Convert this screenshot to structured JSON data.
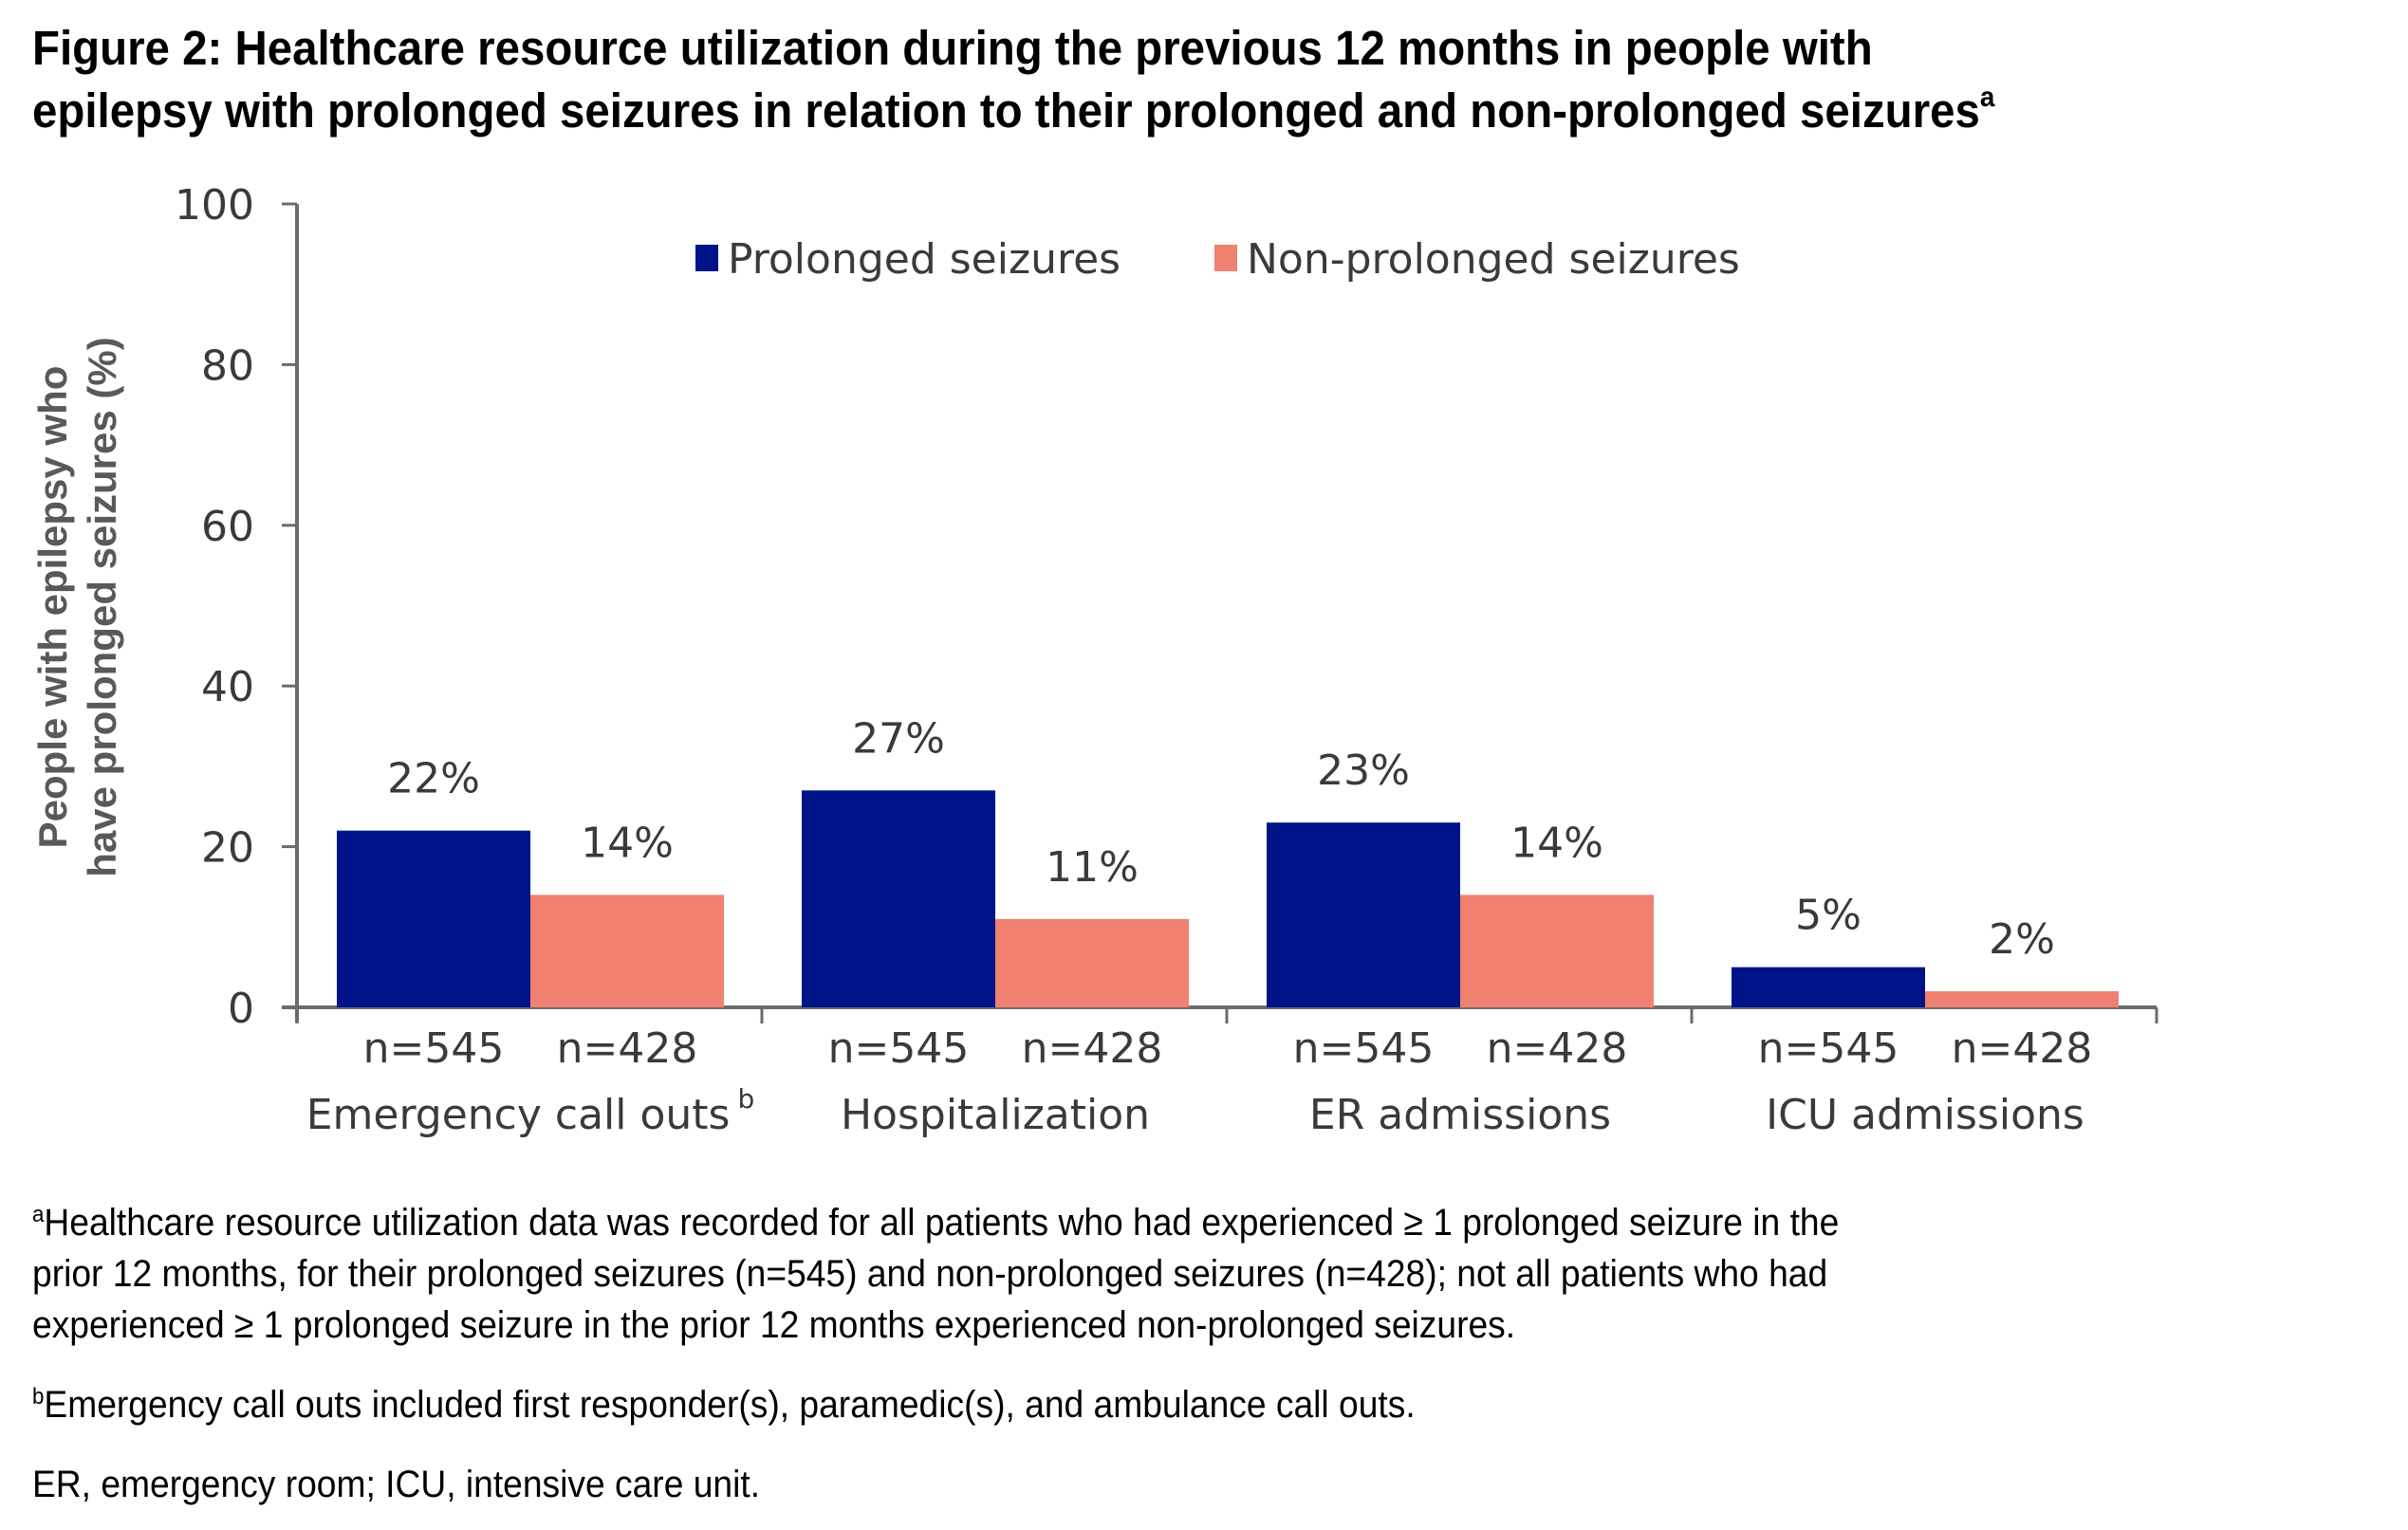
{
  "title": {
    "line1": "Figure 2: Healthcare resource utilization during the previous 12 months in people with",
    "line2": "epilepsy with prolonged seizures in relation to their prolonged and non-prolonged seizures",
    "superscript": "a"
  },
  "chart_data": {
    "type": "bar",
    "title": "Healthcare resource utilization during the previous 12 months in people with epilepsy with prolonged seizures in relation to their prolonged and non-prolonged seizures",
    "xlabel": "",
    "ylabel": "People with epilepsy who have prolonged seizures (%)",
    "ylabel_lines": [
      "People with epilepsy who",
      "have prolonged seizures (%)"
    ],
    "ylim": [
      0,
      100
    ],
    "yticks": [
      0,
      20,
      40,
      60,
      80,
      100
    ],
    "grid": false,
    "legend_position": "top-center",
    "categories": [
      "Emergency call outs",
      "Hospitalization",
      "ER admissions",
      "ICU admissions"
    ],
    "category_superscripts": [
      "b",
      "",
      "",
      ""
    ],
    "series": [
      {
        "name": "Prolonged seizures",
        "color": "#00148A",
        "values": [
          22,
          27,
          23,
          5
        ],
        "value_labels": [
          "22%",
          "27%",
          "23%",
          "5%"
        ],
        "n_labels": [
          "n=545",
          "n=545",
          "n=545",
          "n=545"
        ]
      },
      {
        "name": "Non-prolonged seizures",
        "color": "#F08070",
        "values": [
          14,
          11,
          14,
          2
        ],
        "value_labels": [
          "14%",
          "11%",
          "14%",
          "2%"
        ],
        "n_labels": [
          "n=428",
          "n=428",
          "n=428",
          "n=428"
        ]
      }
    ]
  },
  "footnotes": {
    "a": {
      "marker": "a",
      "lines": [
        "Healthcare resource utilization data was recorded for all patients who had experienced ≥ 1 prolonged seizure in the",
        "prior 12 months, for their prolonged seizures (n=545) and non-prolonged seizures (n=428); not all patients who had",
        "experienced ≥ 1 prolonged seizure in the prior 12 months experienced non-prolonged seizures."
      ]
    },
    "b": {
      "marker": "b",
      "text": "Emergency call outs included first responder(s), paramedic(s), and ambulance call outs."
    },
    "abbreviations": "ER, emergency room; ICU, intensive care unit."
  }
}
